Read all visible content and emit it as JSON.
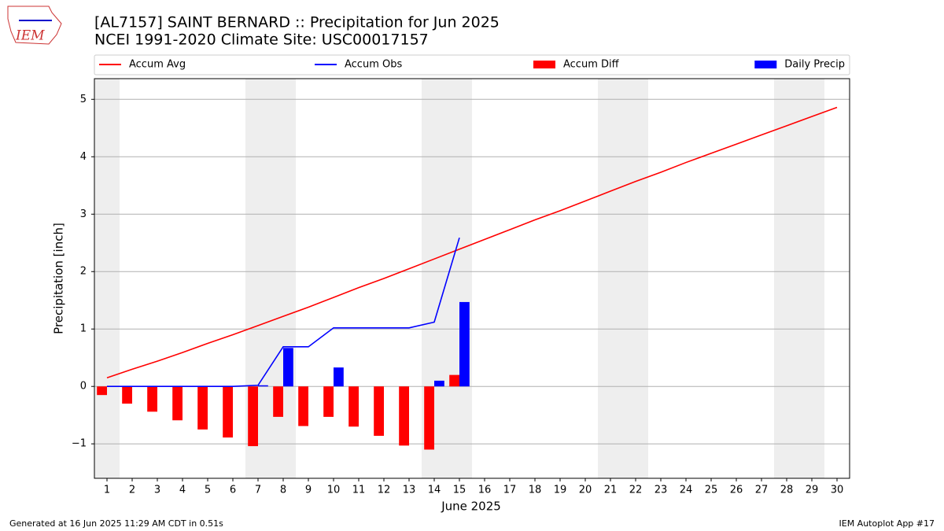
{
  "logo": "IEM",
  "chart_data": {
    "type": "combo",
    "title": "[AL7157] SAINT BERNARD :: Precipitation for Jun 2025",
    "subtitle": "NCEI 1991-2020 Climate Site: USC00017157",
    "x_label": "June 2025",
    "y_label": "Precipitation [inch]",
    "x": [
      1,
      2,
      3,
      4,
      5,
      6,
      7,
      8,
      9,
      10,
      11,
      12,
      13,
      14,
      15,
      16,
      17,
      18,
      19,
      20,
      21,
      22,
      23,
      24,
      25,
      26,
      27,
      28,
      29,
      30
    ],
    "series": [
      {
        "name": "Accum Avg",
        "type": "line",
        "color": "#ff0000",
        "values": [
          0.15,
          0.3,
          0.44,
          0.59,
          0.75,
          0.9,
          1.06,
          1.22,
          1.38,
          1.55,
          1.72,
          1.88,
          2.05,
          2.22,
          2.39,
          2.56,
          2.73,
          2.9,
          3.06,
          3.23,
          3.4,
          3.57,
          3.73,
          3.9,
          4.06,
          4.22,
          4.38,
          4.54,
          4.7,
          4.86
        ]
      },
      {
        "name": "Accum Obs",
        "type": "line",
        "color": "#0000ff",
        "values": [
          0,
          0,
          0,
          0,
          0,
          0,
          0.02,
          0.69,
          0.69,
          1.02,
          1.02,
          1.02,
          1.02,
          1.12,
          2.59,
          null,
          null,
          null,
          null,
          null,
          null,
          null,
          null,
          null,
          null,
          null,
          null,
          null,
          null,
          null
        ]
      },
      {
        "name": "Accum Diff",
        "type": "bar",
        "color": "#ff0000",
        "values": [
          -0.15,
          -0.3,
          -0.44,
          -0.59,
          -0.75,
          -0.89,
          -1.04,
          -0.53,
          -0.69,
          -0.53,
          -0.7,
          -0.86,
          -1.03,
          -1.1,
          0.2,
          null,
          null,
          null,
          null,
          null,
          null,
          null,
          null,
          null,
          null,
          null,
          null,
          null,
          null,
          null
        ]
      },
      {
        "name": "Daily Precip",
        "type": "bar",
        "color": "#0000ff",
        "values": [
          0,
          0,
          0,
          0,
          0,
          0,
          0.02,
          0.67,
          0,
          0.33,
          0,
          0,
          0,
          0.1,
          1.47,
          null,
          null,
          null,
          null,
          null,
          null,
          null,
          null,
          null,
          null,
          null,
          null,
          null,
          null,
          null
        ]
      }
    ],
    "xlim": [
      0.5,
      30.5
    ],
    "xticks": [
      1,
      2,
      3,
      4,
      5,
      6,
      7,
      8,
      9,
      10,
      11,
      12,
      13,
      14,
      15,
      16,
      17,
      18,
      19,
      20,
      21,
      22,
      23,
      24,
      25,
      26,
      27,
      28,
      29,
      30
    ],
    "ylim": [
      -1.6,
      5.36
    ],
    "yticks": [
      {
        "value": -1,
        "label": "−1"
      },
      0,
      1,
      2,
      3,
      4,
      5
    ],
    "grid": true,
    "footer_left": "Generated at 16 Jun 2025 11:29 AM CDT in 0.51s",
    "footer_right": "IEM Autoplot App #17"
  }
}
